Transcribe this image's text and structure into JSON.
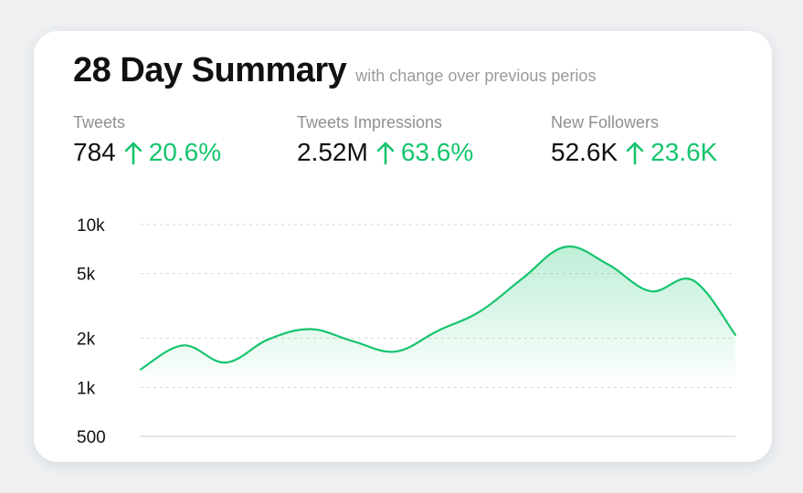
{
  "header": {
    "title": "28 Day Summary",
    "subtitle": "with change over previous perios"
  },
  "stats": [
    {
      "label": "Tweets",
      "value": "784",
      "change": "20.6%"
    },
    {
      "label": "Tweets Impressions",
      "value": "2.52M",
      "change": "63.6%"
    },
    {
      "label": "New Followers",
      "value": "52.6K",
      "change": "23.6K"
    }
  ],
  "icons": {
    "change_indicator": "arrow-up-icon"
  },
  "colors": {
    "positive": "#16c46e",
    "line": "#16c46e",
    "grid": "#d6d6d6",
    "card": "#ffffff",
    "background": "#eef0f2"
  },
  "chart_data": {
    "type": "area",
    "yscale": "log",
    "ylim": [
      500,
      10000
    ],
    "yticks": [
      10000,
      5000,
      2000,
      1000,
      500
    ],
    "ytick_labels": [
      "10k",
      "5k",
      "2k",
      "1k",
      "500"
    ],
    "grid": true,
    "x": [
      0,
      1,
      2,
      3,
      4,
      5,
      6,
      7,
      8,
      9,
      10,
      11,
      12,
      13,
      14
    ],
    "series": [
      {
        "values": [
          1290,
          1810,
          1420,
          1970,
          2280,
          1920,
          1660,
          2230,
          2940,
          4700,
          7300,
          5700,
          3900,
          4550,
          2100
        ]
      }
    ]
  }
}
